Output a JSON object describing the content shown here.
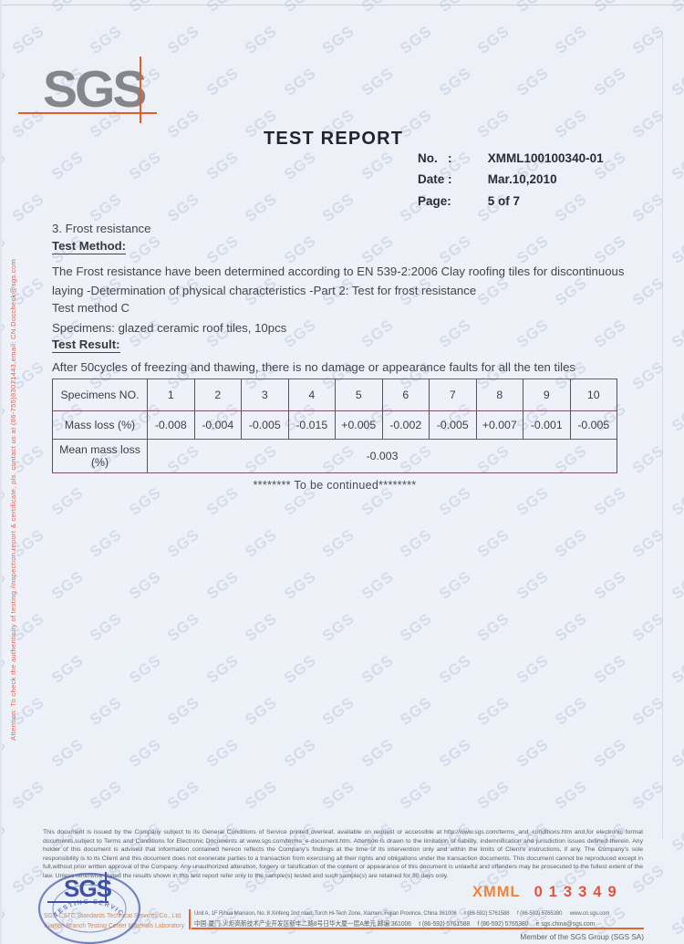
{
  "watermark": {
    "text": "SGS"
  },
  "side_note": "Attention: To check the authenticity of testing /inspection report & certificate, pls. contact us at (86-755)83071443,email: CN.Doccheck@sgs.com",
  "logo": {
    "text": "SGS"
  },
  "header": {
    "title": "TEST REPORT",
    "no_label": "No.   :",
    "no_value": "XMML100100340-01",
    "date_label": "Date :",
    "date_value": "Mar.10,2010",
    "page_label": "Page:",
    "page_value": "5 of 7"
  },
  "body": {
    "section_heading": "3. Frost resistance",
    "method_heading": "Test Method:",
    "method_text": "The Frost resistance have been determined according to EN 539-2:2006 Clay roofing tiles for discontinuous laying -Determination of physical characteristics -Part 2: Test for frost resistance",
    "method_variant": "Test method C",
    "specimens": "Specimens: glazed ceramic roof tiles, 10pcs",
    "result_heading": "Test Result:",
    "result_text": "After 50cycles of freezing and thawing, there is no damage or appearance faults for all the ten tiles",
    "continued": "******** To be continued********"
  },
  "table": {
    "specimens_label": "Specimens NO.",
    "specimen_numbers": [
      "1",
      "2",
      "3",
      "4",
      "5",
      "6",
      "7",
      "8",
      "9",
      "10"
    ],
    "mass_loss_label": "Mass loss (%)",
    "mass_loss_values": [
      "-0.008",
      "-0.004",
      "-0.005",
      "-0.015",
      "+0.005",
      "-0.002",
      "-0.005",
      "+0.007",
      "-0.001",
      "-0.005"
    ],
    "mean_label": "Mean mass loss (%)",
    "mean_value": "-0.003"
  },
  "footer": {
    "legal": "This document is issued by the Company subject to its General Conditions of Service printed overleaf, available on request or accessible at http://www.sgs.com/terms_and_conditions.htm and,for electronic format documents,subject to Terms and Conditions for Electronic Documents at www.sgs.com/terms_e-document.htm. Attention is drawn to the limitation of liability, indemnification and jurisdiction issues defined therein. Any holder of this document is advised that information contained hereon reflects the Company's findings at the time of its intervention only and within the limits of Client's instructions, if any. The Company's sole responsibility is to its Client and this document does not exonerate parties to a transaction from exercising all their rights and obligations under the transaction documents. This document cannot be reproduced except in full,without prior written approval of the Company. Any unauthorized alteration, forgery or falsification of the content or appearance of this document is unlawful and offenders may be prosecuted to the fullest extent of the law. Unless otherwise stated the results shown in this test report refer only to the sample(s) tested and such sample(s) are retained for 30 days only.",
    "serial_prefix": "XMML",
    "serial_digits": "013349",
    "company_line1": "SGS-CSTC Standards Technical Services Co., Ltd.",
    "company_line2": "Xiamen Branch Testing Center Materials Laboratory",
    "stamp_text": "TESTING SERVICES",
    "address_en": "Unit A, 1F Rihua Mansion, No. 8 Xinfeng 2nd road, Torch Hi-Tech Zone, Xiamen, Fujian Province, China 361006",
    "address_cn": "中国·厦门·火炬高新技术产业开发区新丰二路8号日华大厦一层A单元  邮编:361006",
    "tel": "t  (86-592) 5761588",
    "fax": "f  (86-592) 5765380",
    "web": "www.cn.sgs.com",
    "email": "e  sgs.china@sgs.com",
    "member": "Member of the SGS Group (SGS SA)"
  },
  "colors": {
    "accent_orange": "#e8622a",
    "brand_gray": "#85868b",
    "stamp_blue": "#4052a8",
    "serial_red": "#e8503c",
    "side_note_red": "#e06050",
    "watermark_blue": "#97add1"
  }
}
